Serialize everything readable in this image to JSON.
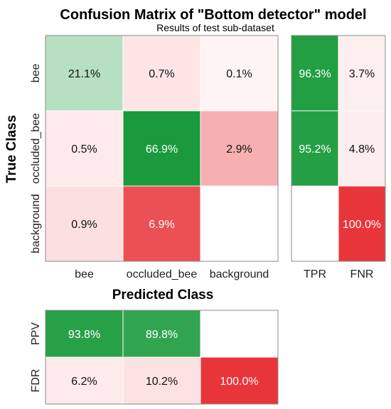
{
  "chart_data": {
    "type": "heatmap",
    "title": "Confusion Matrix of \"Bottom detector\" model",
    "subtitle": "Results of test sub-dataset",
    "ylabel": "True Class",
    "xlabel": "Predicted Class",
    "classes": [
      "bee",
      "occluded_bee",
      "background"
    ],
    "matrix": {
      "values": [
        [
          21.1,
          0.7,
          0.1
        ],
        [
          0.5,
          66.9,
          2.9
        ],
        [
          0.9,
          6.9,
          null
        ]
      ],
      "labels": [
        [
          "21.1%",
          "0.7%",
          "0.1%"
        ],
        [
          "0.5%",
          "66.9%",
          "2.9%"
        ],
        [
          "0.9%",
          "6.9%",
          ""
        ]
      ]
    },
    "row_summary": {
      "columns": [
        "TPR",
        "FNR"
      ],
      "values": [
        [
          96.3,
          3.7
        ],
        [
          95.2,
          4.8
        ],
        [
          null,
          100.0
        ]
      ],
      "labels": [
        [
          "96.3%",
          "3.7%"
        ],
        [
          "95.2%",
          "4.8%"
        ],
        [
          "",
          "100.0%"
        ]
      ]
    },
    "column_summary": {
      "rows": [
        "PPV",
        "FDR"
      ],
      "values": [
        [
          93.8,
          89.8,
          null
        ],
        [
          6.2,
          10.2,
          100.0
        ]
      ],
      "labels": [
        [
          "93.8%",
          "89.8%",
          ""
        ],
        [
          "6.2%",
          "10.2%",
          "100.0%"
        ]
      ]
    },
    "colors": {
      "correct": "#1a9a3c",
      "incorrect": "#e8353a",
      "empty": "#ffffff"
    }
  }
}
